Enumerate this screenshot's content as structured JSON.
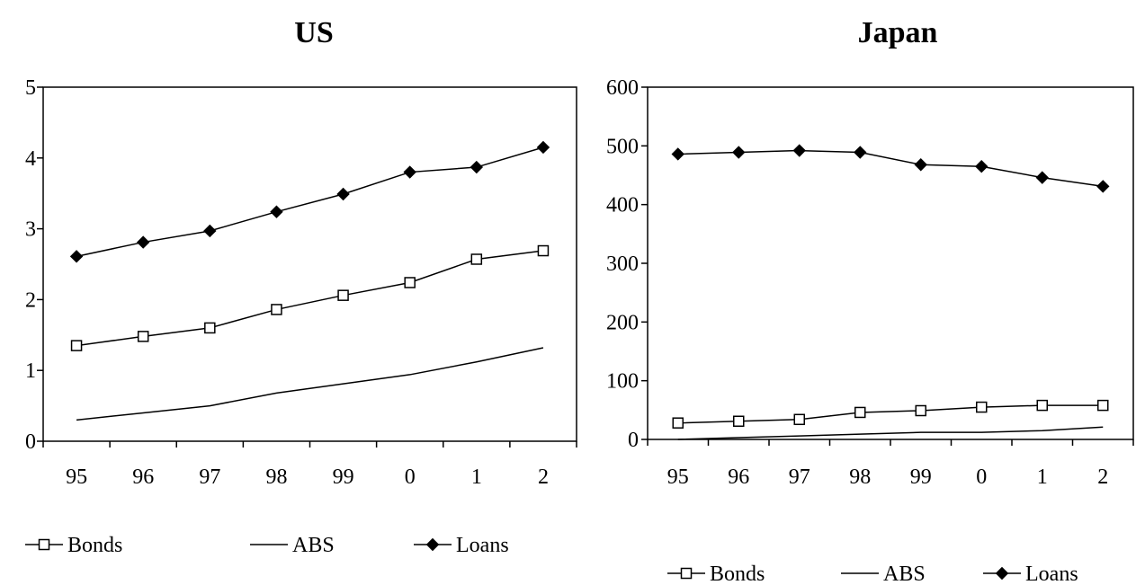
{
  "chart_data": [
    {
      "type": "line",
      "title": "US",
      "categories": [
        "95",
        "96",
        "97",
        "98",
        "99",
        "0",
        "1",
        "2"
      ],
      "ylim": [
        0,
        5
      ],
      "yticks": [
        0,
        1,
        2,
        3,
        4,
        5
      ],
      "grid": false,
      "legend_placement": "bottom",
      "series": [
        {
          "name": "Bonds",
          "marker": "square-open",
          "values": [
            1.35,
            1.48,
            1.6,
            1.86,
            2.06,
            2.24,
            2.57,
            2.69
          ]
        },
        {
          "name": "ABS",
          "marker": "none",
          "values": [
            0.3,
            0.4,
            0.5,
            0.68,
            0.81,
            0.94,
            1.12,
            1.32
          ]
        },
        {
          "name": "Loans",
          "marker": "diamond-filled",
          "values": [
            2.61,
            2.81,
            2.97,
            3.24,
            3.49,
            3.8,
            3.87,
            4.15
          ]
        }
      ]
    },
    {
      "type": "line",
      "title": "Japan",
      "categories": [
        "95",
        "96",
        "97",
        "98",
        "99",
        "0",
        "1",
        "2"
      ],
      "ylim": [
        0,
        600
      ],
      "yticks": [
        0,
        100,
        200,
        300,
        400,
        500,
        600
      ],
      "grid": false,
      "legend_placement": "bottom",
      "series": [
        {
          "name": "Bonds",
          "marker": "square-open",
          "values": [
            28,
            31,
            34,
            46,
            49,
            55,
            58,
            58
          ]
        },
        {
          "name": "ABS",
          "marker": "none",
          "values": [
            0,
            3,
            6,
            9,
            12,
            12,
            15,
            21
          ]
        },
        {
          "name": "Loans",
          "marker": "diamond-filled",
          "values": [
            486,
            489,
            492,
            489,
            468,
            465,
            446,
            431
          ]
        }
      ]
    }
  ],
  "colors": {
    "line": "#000000",
    "background": "#ffffff"
  }
}
